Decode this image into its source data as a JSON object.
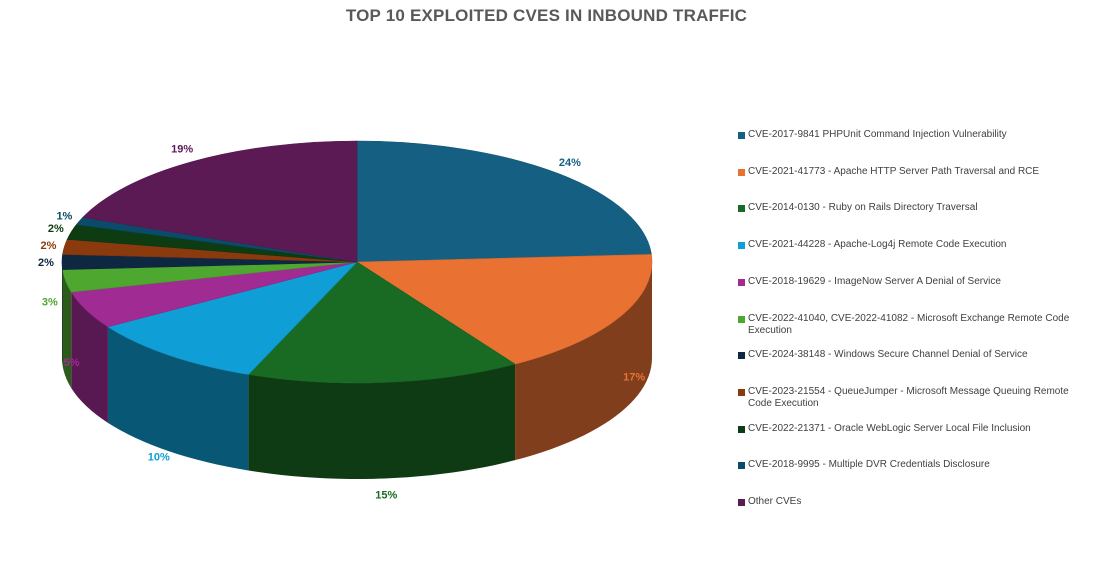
{
  "chart_data": {
    "type": "pie",
    "title": "TOP 10 EXPLOITED CVES IN INBOUND TRAFFIC",
    "legend_position": "right",
    "slices": [
      {
        "label": "CVE-2017-9841 PHPUnit Command Injection Vulnerability",
        "value": 24,
        "display": "24%",
        "color": "#156082"
      },
      {
        "label": "CVE-2021-41773 - Apache HTTP Server Path Traversal and RCE",
        "value": 17,
        "display": "17%",
        "color": "#E97132"
      },
      {
        "label": "CVE-2014-0130 - Ruby on Rails Directory Traversal",
        "value": 15,
        "display": "15%",
        "color": "#196B24"
      },
      {
        "label": "CVE-2021-44228 - Apache-Log4j Remote Code Execution",
        "value": 10,
        "display": "10%",
        "color": "#0F9ED5"
      },
      {
        "label": "CVE-2018-19629 - ImageNow Server A Denial of Service",
        "value": 5,
        "display": "5%",
        "color": "#A02B93"
      },
      {
        "label": "CVE-2022-41040, CVE-2022-41082 - Microsoft Exchange Remote Code Execution",
        "value": 3,
        "display": "3%",
        "color": "#4EA72E"
      },
      {
        "label": "CVE-2024-38148 - Windows Secure Channel Denial of Service",
        "value": 2,
        "display": "2%",
        "color": "#0E2841"
      },
      {
        "label": "CVE-2023-21554 - QueueJumper - Microsoft Message Queuing Remote Code Execution",
        "value": 2,
        "display": "2%",
        "color": "#8B3A0E"
      },
      {
        "label": "CVE-2022-21371 - Oracle WebLogic Server Local File Inclusion",
        "value": 2,
        "display": "2%",
        "color": "#0D3B12"
      },
      {
        "label": "CVE-2018-9995 - Multiple DVR Credentials Disclosure",
        "value": 1,
        "display": "1%",
        "color": "#0C4A6A"
      },
      {
        "label": "Other CVEs",
        "value": 19,
        "display": "19%",
        "color": "#5C1A55"
      }
    ]
  }
}
